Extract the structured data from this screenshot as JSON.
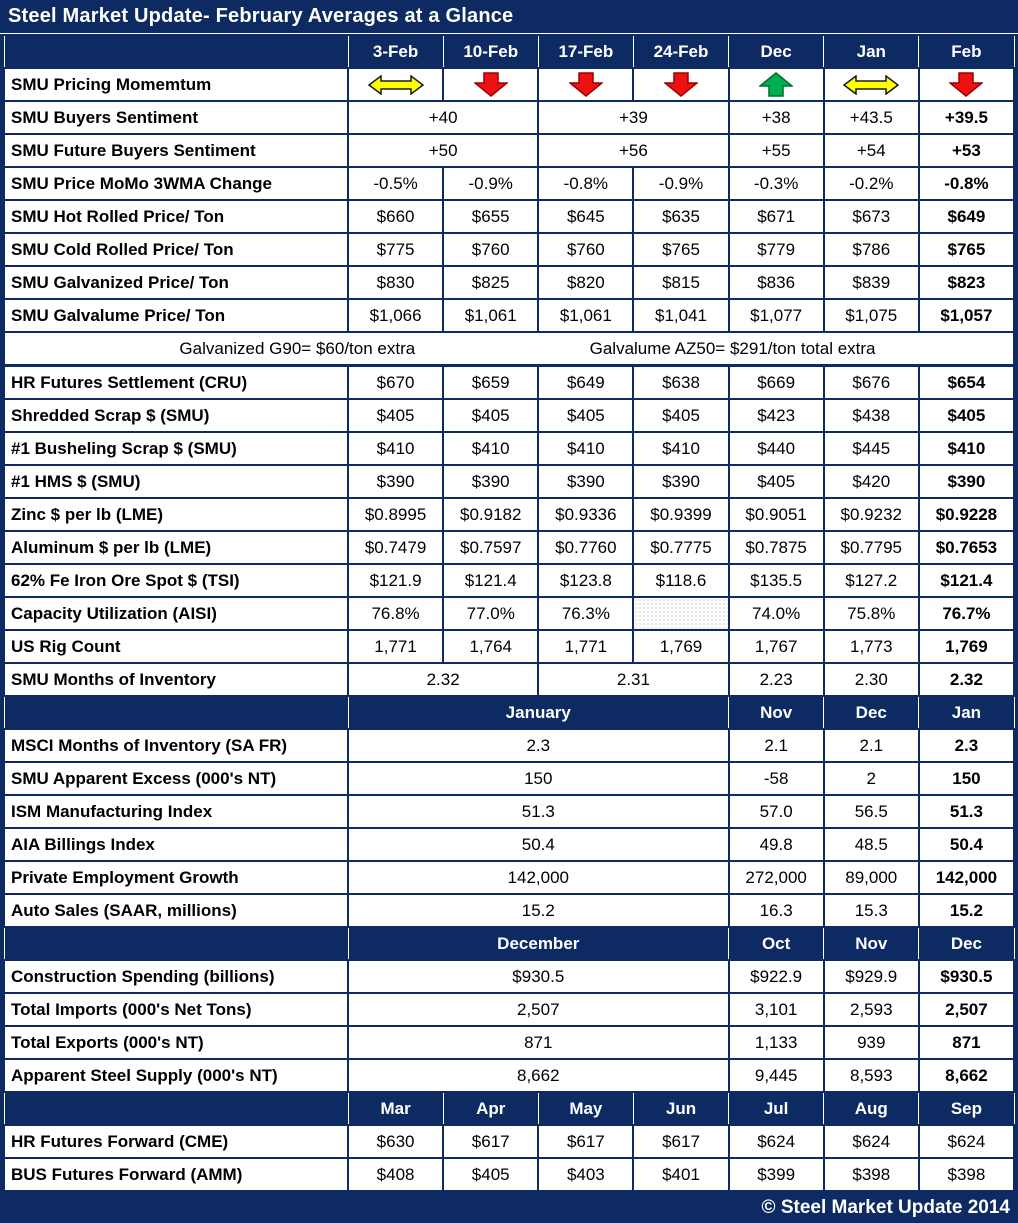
{
  "title": "Steel Market Update- February Averages at a Glance",
  "footer": "© Steel Market Update 2014",
  "colors": {
    "navy": "#0d2a63",
    "white": "#ffffff",
    "red": "#ee1111",
    "dark_red": "#9c0000",
    "green": "#00b050",
    "dark_green": "#006b2d",
    "yellow": "#ffff00"
  },
  "icon_legend": {
    "double": "yellow sideways double arrow (neutral momentum)",
    "down": "red down arrow (falling momentum)",
    "up": "green up arrow (rising momentum)"
  },
  "table": {
    "sections": [
      {
        "header": [
          {
            "v": ""
          },
          {
            "v": "3-Feb"
          },
          {
            "v": "10-Feb"
          },
          {
            "v": "17-Feb"
          },
          {
            "v": "24-Feb"
          },
          {
            "v": "Dec"
          },
          {
            "v": "Jan"
          },
          {
            "v": "Feb"
          }
        ],
        "rows": [
          {
            "label": "SMU Pricing Momemtum",
            "cells": [
              {
                "icon": "double"
              },
              {
                "icon": "down"
              },
              {
                "icon": "down"
              },
              {
                "icon": "down"
              },
              {
                "icon": "up"
              },
              {
                "icon": "double"
              },
              {
                "icon": "down"
              }
            ]
          },
          {
            "label": "SMU Buyers Sentiment",
            "cells": [
              {
                "v": "+40",
                "span": 2
              },
              {
                "v": "+39",
                "span": 2
              },
              {
                "v": "+38"
              },
              {
                "v": "+43.5"
              },
              {
                "v": "+39.5",
                "bold": true
              }
            ]
          },
          {
            "label": "SMU Future Buyers Sentiment",
            "cells": [
              {
                "v": "+50",
                "span": 2
              },
              {
                "v": "+56",
                "span": 2
              },
              {
                "v": "+55"
              },
              {
                "v": "+54"
              },
              {
                "v": "+53",
                "bold": true
              }
            ]
          },
          {
            "label": "SMU Price MoMo 3WMA Change",
            "cells": [
              {
                "v": "-0.5%"
              },
              {
                "v": "-0.9%"
              },
              {
                "v": "-0.8%"
              },
              {
                "v": "-0.9%"
              },
              {
                "v": "-0.3%"
              },
              {
                "v": "-0.2%"
              },
              {
                "v": "-0.8%",
                "bold": true
              }
            ]
          },
          {
            "label": "SMU Hot Rolled Price/ Ton",
            "cells": [
              {
                "v": "$660"
              },
              {
                "v": "$655"
              },
              {
                "v": "$645"
              },
              {
                "v": "$635"
              },
              {
                "v": "$671"
              },
              {
                "v": "$673"
              },
              {
                "v": "$649",
                "bold": true
              }
            ]
          },
          {
            "label": "SMU Cold Rolled Price/ Ton",
            "cells": [
              {
                "v": "$775"
              },
              {
                "v": "$760"
              },
              {
                "v": "$760"
              },
              {
                "v": "$765"
              },
              {
                "v": "$779"
              },
              {
                "v": "$786"
              },
              {
                "v": "$765",
                "bold": true
              }
            ]
          },
          {
            "label": "SMU Galvanized Price/ Ton",
            "cells": [
              {
                "v": "$830"
              },
              {
                "v": "$825"
              },
              {
                "v": "$820"
              },
              {
                "v": "$815"
              },
              {
                "v": "$836"
              },
              {
                "v": "$839"
              },
              {
                "v": "$823",
                "bold": true
              }
            ]
          },
          {
            "label": "SMU Galvalume Price/ Ton",
            "cells": [
              {
                "v": "$1,066"
              },
              {
                "v": "$1,061"
              },
              {
                "v": "$1,061"
              },
              {
                "v": "$1,041"
              },
              {
                "v": "$1,077"
              },
              {
                "v": "$1,075"
              },
              {
                "v": "$1,057",
                "bold": true
              }
            ]
          },
          {
            "type": "note",
            "texts": [
              "Galvanized G90= $60/ton extra",
              "Galvalume AZ50= $291/ton total extra"
            ]
          },
          {
            "label": "HR Futures Settlement (CRU)",
            "thickTop": true,
            "cells": [
              {
                "v": "$670"
              },
              {
                "v": "$659"
              },
              {
                "v": "$649"
              },
              {
                "v": "$638"
              },
              {
                "v": "$669"
              },
              {
                "v": "$676"
              },
              {
                "v": "$654",
                "bold": true
              }
            ]
          },
          {
            "label": "Shredded Scrap $ (SMU)",
            "cells": [
              {
                "v": "$405"
              },
              {
                "v": "$405"
              },
              {
                "v": "$405"
              },
              {
                "v": "$405"
              },
              {
                "v": "$423"
              },
              {
                "v": "$438"
              },
              {
                "v": "$405",
                "bold": true
              }
            ]
          },
          {
            "label": "#1 Busheling Scrap $ (SMU)",
            "cells": [
              {
                "v": "$410"
              },
              {
                "v": "$410"
              },
              {
                "v": "$410"
              },
              {
                "v": "$410"
              },
              {
                "v": "$440"
              },
              {
                "v": "$445"
              },
              {
                "v": "$410",
                "bold": true
              }
            ]
          },
          {
            "label": "#1 HMS $ (SMU)",
            "cells": [
              {
                "v": "$390"
              },
              {
                "v": "$390"
              },
              {
                "v": "$390"
              },
              {
                "v": "$390"
              },
              {
                "v": "$405"
              },
              {
                "v": "$420"
              },
              {
                "v": "$390",
                "bold": true
              }
            ]
          },
          {
            "label": "Zinc $ per lb (LME)",
            "cells": [
              {
                "v": "$0.8995"
              },
              {
                "v": "$0.9182"
              },
              {
                "v": "$0.9336"
              },
              {
                "v": "$0.9399"
              },
              {
                "v": "$0.9051"
              },
              {
                "v": "$0.9232"
              },
              {
                "v": "$0.9228",
                "bold": true
              }
            ]
          },
          {
            "label": "Aluminum $ per lb (LME)",
            "cells": [
              {
                "v": "$0.7479"
              },
              {
                "v": "$0.7597"
              },
              {
                "v": "$0.7760"
              },
              {
                "v": "$0.7775"
              },
              {
                "v": "$0.7875"
              },
              {
                "v": "$0.7795"
              },
              {
                "v": "$0.7653",
                "bold": true
              }
            ]
          },
          {
            "label": "62% Fe Iron Ore Spot $ (TSI)",
            "cells": [
              {
                "v": "$121.9"
              },
              {
                "v": "$121.4"
              },
              {
                "v": "$123.8"
              },
              {
                "v": "$118.6"
              },
              {
                "v": "$135.5"
              },
              {
                "v": "$127.2"
              },
              {
                "v": "$121.4",
                "bold": true
              }
            ]
          },
          {
            "label": "Capacity Utilization (AISI)",
            "cells": [
              {
                "v": "76.8%"
              },
              {
                "v": "77.0%"
              },
              {
                "v": "76.3%"
              },
              {
                "hatch": true
              },
              {
                "v": "74.0%"
              },
              {
                "v": "75.8%"
              },
              {
                "v": "76.7%",
                "bold": true
              }
            ]
          },
          {
            "label": "US Rig Count",
            "cells": [
              {
                "v": "1,771"
              },
              {
                "v": "1,764"
              },
              {
                "v": "1,771"
              },
              {
                "v": "1,769"
              },
              {
                "v": "1,767"
              },
              {
                "v": "1,773"
              },
              {
                "v": "1,769",
                "bold": true
              }
            ]
          },
          {
            "label": "SMU Months of Inventory",
            "cells": [
              {
                "v": "2.32",
                "span": 2
              },
              {
                "v": "2.31",
                "span": 2
              },
              {
                "v": "2.23"
              },
              {
                "v": "2.30"
              },
              {
                "v": "2.32",
                "bold": true
              }
            ]
          }
        ]
      },
      {
        "header": [
          {
            "v": ""
          },
          {
            "v": "January",
            "span": 4
          },
          {
            "v": "Nov"
          },
          {
            "v": "Dec"
          },
          {
            "v": "Jan"
          }
        ],
        "rows": [
          {
            "label": "MSCI Months of Inventory (SA FR)",
            "cells": [
              {
                "v": "2.3",
                "span": 4
              },
              {
                "v": "2.1"
              },
              {
                "v": "2.1"
              },
              {
                "v": "2.3",
                "bold": true
              }
            ]
          },
          {
            "label": "SMU Apparent Excess (000's NT)",
            "cells": [
              {
                "v": "150",
                "span": 4
              },
              {
                "v": "-58"
              },
              {
                "v": "2"
              },
              {
                "v": "150",
                "bold": true
              }
            ]
          },
          {
            "label": "ISM Manufacturing Index",
            "cells": [
              {
                "v": "51.3",
                "span": 4
              },
              {
                "v": "57.0"
              },
              {
                "v": "56.5"
              },
              {
                "v": "51.3",
                "bold": true
              }
            ]
          },
          {
            "label": "AIA Billings Index",
            "cells": [
              {
                "v": "50.4",
                "span": 4
              },
              {
                "v": "49.8"
              },
              {
                "v": "48.5"
              },
              {
                "v": "50.4",
                "bold": true
              }
            ]
          },
          {
            "label": "Private Employment Growth",
            "cells": [
              {
                "v": "142,000",
                "span": 4
              },
              {
                "v": "272,000"
              },
              {
                "v": "89,000"
              },
              {
                "v": "142,000",
                "bold": true
              }
            ]
          },
          {
            "label": "Auto Sales (SAAR, millions)",
            "cells": [
              {
                "v": "15.2",
                "span": 4
              },
              {
                "v": "16.3"
              },
              {
                "v": "15.3"
              },
              {
                "v": "15.2",
                "bold": true
              }
            ]
          }
        ]
      },
      {
        "header": [
          {
            "v": ""
          },
          {
            "v": "December",
            "span": 4
          },
          {
            "v": "Oct"
          },
          {
            "v": "Nov"
          },
          {
            "v": "Dec"
          }
        ],
        "rows": [
          {
            "label": "Construction Spending (billions)",
            "cells": [
              {
                "v": "$930.5",
                "span": 4
              },
              {
                "v": "$922.9"
              },
              {
                "v": "$929.9"
              },
              {
                "v": "$930.5",
                "bold": true
              }
            ]
          },
          {
            "label": "Total Imports (000's Net Tons)",
            "cells": [
              {
                "v": "2,507",
                "span": 4
              },
              {
                "v": "3,101"
              },
              {
                "v": "2,593"
              },
              {
                "v": "2,507",
                "bold": true
              }
            ]
          },
          {
            "label": "Total Exports (000's NT)",
            "cells": [
              {
                "v": "871",
                "span": 4
              },
              {
                "v": "1,133"
              },
              {
                "v": "939"
              },
              {
                "v": "871",
                "bold": true
              }
            ]
          },
          {
            "label": "Apparent Steel Supply (000's NT)",
            "cells": [
              {
                "v": "8,662",
                "span": 4
              },
              {
                "v": "9,445"
              },
              {
                "v": "8,593"
              },
              {
                "v": "8,662",
                "bold": true
              }
            ]
          }
        ]
      },
      {
        "header": [
          {
            "v": ""
          },
          {
            "v": "Mar"
          },
          {
            "v": "Apr"
          },
          {
            "v": "May"
          },
          {
            "v": "Jun"
          },
          {
            "v": "Jul"
          },
          {
            "v": "Aug"
          },
          {
            "v": "Sep"
          }
        ],
        "rows": [
          {
            "label": "HR Futures Forward (CME)",
            "cells": [
              {
                "v": "$630"
              },
              {
                "v": "$617"
              },
              {
                "v": "$617"
              },
              {
                "v": "$617"
              },
              {
                "v": "$624"
              },
              {
                "v": "$624"
              },
              {
                "v": "$624"
              }
            ]
          },
          {
            "label": "BUS Futures Forward (AMM)",
            "cells": [
              {
                "v": "$408"
              },
              {
                "v": "$405"
              },
              {
                "v": "$403"
              },
              {
                "v": "$401"
              },
              {
                "v": "$399"
              },
              {
                "v": "$398"
              },
              {
                "v": "$398"
              }
            ]
          }
        ]
      }
    ]
  }
}
